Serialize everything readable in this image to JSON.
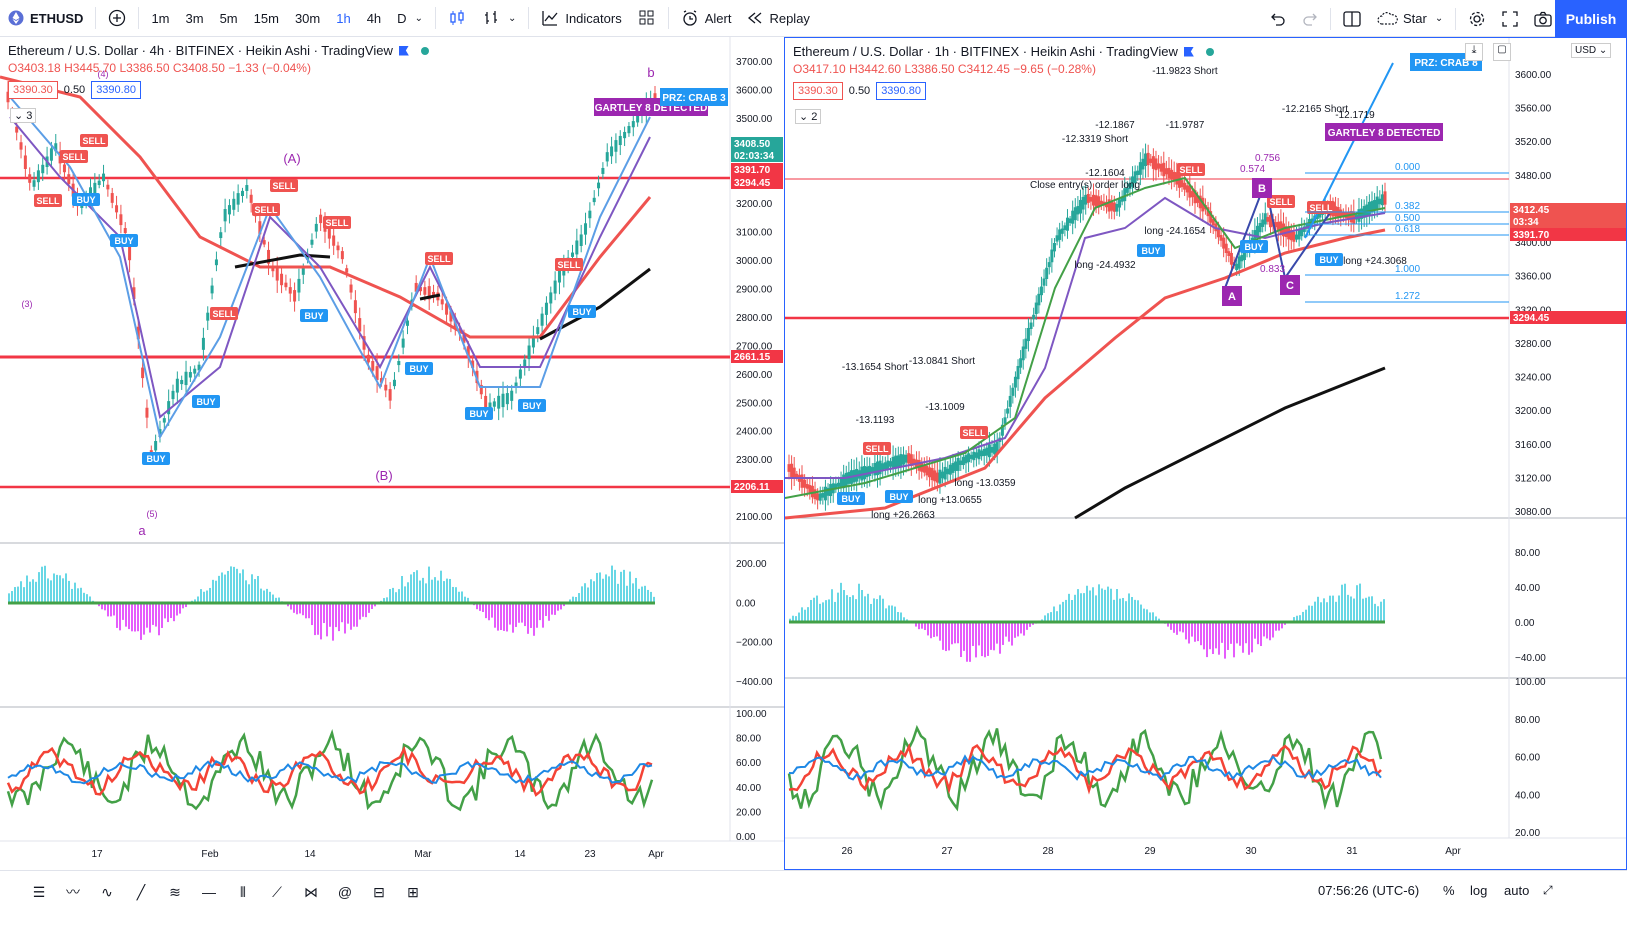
{
  "toolbar": {
    "symbol": "ETHUSD",
    "intervals": [
      "1m",
      "3m",
      "5m",
      "15m",
      "30m",
      "1h",
      "4h",
      "D"
    ],
    "active_interval": "1h",
    "indicators_label": "Indicators",
    "alert_label": "Alert",
    "replay_label": "Replay",
    "star_label": "Star",
    "publish_label": "Publish"
  },
  "left_chart": {
    "title": "Ethereum / U.S. Dollar · 4h · BITFINEX · Heikin Ashi · TradingView",
    "ohlc": {
      "o": "O3403.18",
      "h": "H3445.70",
      "l": "L3386.50",
      "c": "C3408.50",
      "chg": "−1.33 (−0.04%)"
    },
    "box_sell": "3390.30",
    "box_mid": "0.50",
    "box_buy": "3390.80",
    "layers": "3",
    "price_ticks": [
      "3700.00",
      "3600.00",
      "3500.00",
      "3400.00",
      "3300.00",
      "3200.00",
      "3100.00",
      "3000.00",
      "2900.00",
      "2800.00",
      "2700.00",
      "2600.00",
      "2500.00",
      "2400.00",
      "2300.00",
      "2200.00",
      "2100.00"
    ],
    "price_tags": [
      {
        "label": "3408.50",
        "color": "#26a69a"
      },
      {
        "label": "02:03:34",
        "color": "#26a69a"
      },
      {
        "label": "3391.70",
        "color": "#f23645"
      },
      {
        "label": "3294.45",
        "color": "#f23645"
      },
      {
        "label": "2661.15",
        "color": "#f23645"
      },
      {
        "label": "2206.11",
        "color": "#f23645"
      }
    ],
    "date_ticks": [
      "17",
      "Feb",
      "14",
      "Mar",
      "14",
      "23",
      "Apr"
    ],
    "macd_ticks": [
      "200.00",
      "0.00",
      "−200.00",
      "−400.00"
    ],
    "rsi_ticks": [
      "100.00",
      "80.00",
      "60.00",
      "40.00",
      "20.00",
      "0.00"
    ],
    "annotations": [
      "(A)",
      "(B)",
      "b",
      "a",
      "(3)",
      "(4)",
      "(5)"
    ],
    "banner": "GARTLEY 8 DETECTED",
    "crab": "PRZ: CRAB 3",
    "signals": [
      "SELL",
      "BUY"
    ]
  },
  "right_chart": {
    "title": "Ethereum / U.S. Dollar · 1h · BITFINEX · Heikin Ashi · TradingView",
    "ohlc": {
      "o": "O3417.10",
      "h": "H3442.60",
      "l": "L3386.50",
      "c": "C3412.45",
      "chg": "−9.65 (−0.28%)"
    },
    "box_sell": "3390.30",
    "box_mid": "0.50",
    "box_buy": "3390.80",
    "layers": "2",
    "currency": "USD",
    "price_ticks": [
      "3600.00",
      "3560.00",
      "3520.00",
      "3480.00",
      "3440.00",
      "3400.00",
      "3360.00",
      "3320.00",
      "3280.00",
      "3240.00",
      "3200.00",
      "3160.00",
      "3120.00",
      "3080.00"
    ],
    "price_tags": [
      {
        "label": "3412.45",
        "color": "#ef5350"
      },
      {
        "label": "03:34",
        "color": "#ef5350"
      },
      {
        "label": "3391.70",
        "color": "#f23645"
      },
      {
        "label": "3294.45",
        "color": "#f23645"
      }
    ],
    "date_ticks": [
      "26",
      "27",
      "28",
      "29",
      "30",
      "31",
      "Apr"
    ],
    "macd_ticks": [
      "80.00",
      "40.00",
      "0.00",
      "−40.00"
    ],
    "rsi_ticks": [
      "100.00",
      "80.00",
      "60.00",
      "40.00",
      "20.00"
    ],
    "fib_levels": [
      "0.000",
      "0.382",
      "0.500",
      "0.618",
      "1.000",
      "1.272"
    ],
    "banner": "GARTLEY 8 DETECTED",
    "crab": "PRZ: CRAB 8",
    "points": [
      "A",
      "B",
      "C"
    ],
    "trade_notes": [
      "-12.1867",
      "-12.3319 Short",
      "-11.9823 Short",
      "-11.9787",
      "-12.2165 Short",
      "-12.1719",
      "-12.1604",
      "Close entry(s) order long",
      "long -24.1654",
      "long -24.4932",
      "long +24.3068",
      "-13.1654 Short",
      "-13.0841 Short",
      "-13.1193",
      "-13.1009",
      "long +26.2663",
      "long +13.0655",
      "long -13.0359"
    ],
    "fib_ratios": [
      "0.756",
      "0.574",
      "0.833"
    ]
  },
  "status_bar": {
    "time": "07:56:26 (UTC-6)",
    "pct": "%",
    "log": "log",
    "auto": "auto"
  }
}
